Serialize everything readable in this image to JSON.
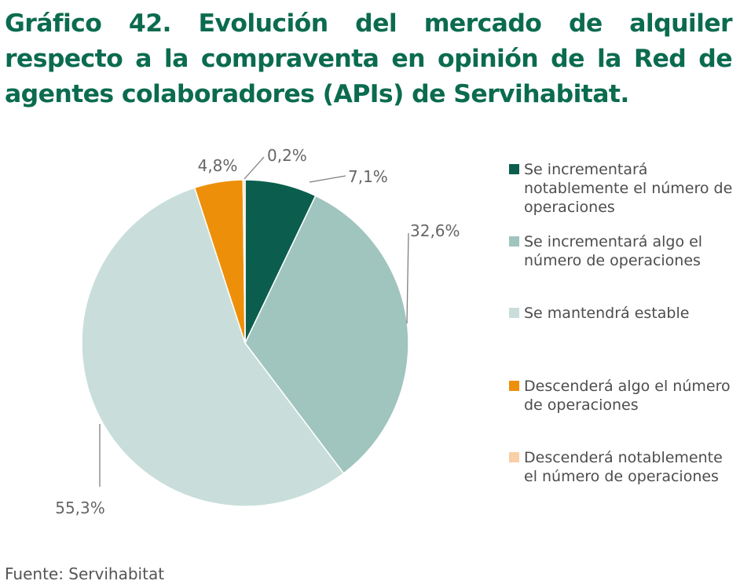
{
  "title": "Gráfico 42. Evolución del mercado de alquiler respecto a la compraventa en opinión de la Red de agentes colaboradores (APIs) de Servihabitat.",
  "source": "Fuente: Servihabitat",
  "chart_data": {
    "type": "pie",
    "start_angle_deg": 0,
    "direction": "clockwise",
    "slices": [
      {
        "label": "Se incrementará notablemente el número de operaciones",
        "value": 7.1,
        "value_label": "7,1%",
        "color": "#0b5e4d"
      },
      {
        "label": "Se incrementará algo el número de operaciones",
        "value": 32.6,
        "value_label": "32,6%",
        "color": "#a0c4be"
      },
      {
        "label": "Se mantendrá estable",
        "value": 55.3,
        "value_label": "55,3%",
        "color": "#c9dedb"
      },
      {
        "label": "Descenderá algo el número de operaciones",
        "value": 4.8,
        "value_label": "4,8%",
        "color": "#ee8f0a"
      },
      {
        "label": "Descenderá notablemente el número de operaciones",
        "value": 0.2,
        "value_label": "0,2%",
        "color": "#f8cfa6"
      }
    ],
    "legend_position": "right"
  }
}
